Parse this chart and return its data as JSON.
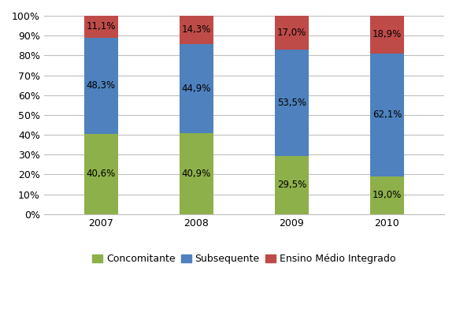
{
  "years": [
    "2007",
    "2008",
    "2009",
    "2010"
  ],
  "concomitante": [
    40.6,
    40.9,
    29.5,
    19.0
  ],
  "subsequente": [
    48.3,
    44.9,
    53.5,
    62.1
  ],
  "ensino_medio": [
    11.1,
    14.3,
    17.0,
    18.9
  ],
  "color_concomitante": "#8DB04A",
  "color_subsequente": "#4E81BD",
  "color_ensino_medio": "#BE4B48",
  "label_concomitante": "Concomitante",
  "label_subsequente": "Subsequente",
  "label_ensino_medio": "Ensino Médio Integrado",
  "bar_width": 0.35,
  "ylim": [
    0,
    100
  ],
  "yticks": [
    0,
    10,
    20,
    30,
    40,
    50,
    60,
    70,
    80,
    90,
    100
  ],
  "ytick_labels": [
    "0%",
    "10%",
    "20%",
    "30%",
    "40%",
    "50%",
    "60%",
    "70%",
    "80%",
    "90%",
    "100%"
  ],
  "background_color": "#FFFFFF",
  "grid_color": "#BFBFBF",
  "font_size_labels": 8.5,
  "font_size_ticks": 9,
  "font_size_legend": 9
}
